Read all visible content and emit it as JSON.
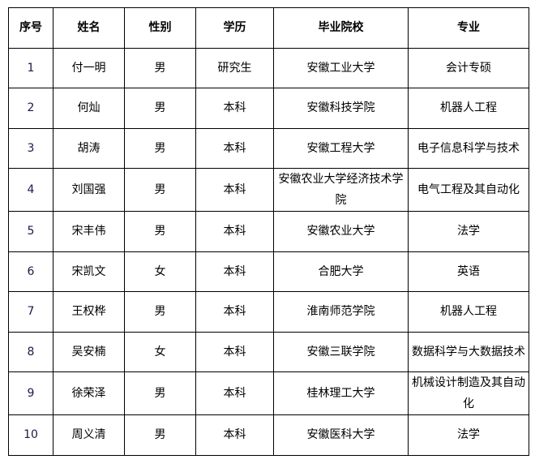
{
  "table": {
    "headers": [
      "序号",
      "姓名",
      "性别",
      "学历",
      "毕业院校",
      "专业"
    ],
    "rows": [
      [
        "1",
        "付一明",
        "男",
        "研究生",
        "安徽工业大学",
        "会计专硕"
      ],
      [
        "2",
        "何灿",
        "男",
        "本科",
        "安徽科技学院",
        "机器人工程"
      ],
      [
        "3",
        "胡涛",
        "男",
        "本科",
        "安徽工程大学",
        "电子信息科学与技术"
      ],
      [
        "4",
        "刘国强",
        "男",
        "本科",
        "安徽农业大学经济技术学院",
        "电气工程及其自动化"
      ],
      [
        "5",
        "宋丰伟",
        "男",
        "本科",
        "安徽农业大学",
        "法学"
      ],
      [
        "6",
        "宋凯文",
        "女",
        "本科",
        "合肥大学",
        "英语"
      ],
      [
        "7",
        "王权桦",
        "男",
        "本科",
        "淮南师范学院",
        "机器人工程"
      ],
      [
        "8",
        "吴安楠",
        "女",
        "本科",
        "安徽三联学院",
        "数据科学与大数据技术"
      ],
      [
        "9",
        "徐荣泽",
        "男",
        "本科",
        "桂林理工大学",
        "机械设计制造及其自动化"
      ],
      [
        "10",
        "周义清",
        "男",
        "本科",
        "安徽医科大学",
        "法学"
      ]
    ]
  }
}
